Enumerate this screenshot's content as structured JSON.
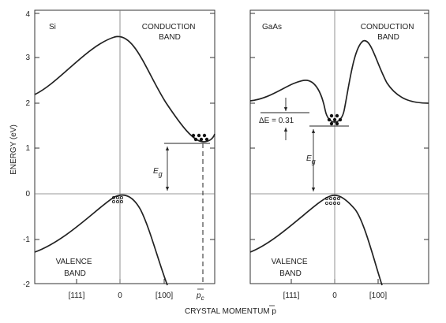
{
  "y_axis": {
    "label": "ENERGY (eV)",
    "ticks": [
      "4",
      "3",
      "2",
      "1",
      "0",
      "-1",
      "-2"
    ]
  },
  "x_axis": {
    "label": "CRYSTAL MOMENTUM p"
  },
  "panels": [
    {
      "material": "Si",
      "conduction_label": [
        "CONDUCTION",
        "BAND"
      ],
      "valence_label": [
        "VALENCE",
        "BAND"
      ],
      "x_ticks": [
        "[111]",
        "0",
        "[100]",
        "p"
      ],
      "x_tick_subscript": "c",
      "gap_symbol": "E",
      "gap_subscript": "g"
    },
    {
      "material": "GaAs",
      "conduction_label": [
        "CONDUCTION",
        "BAND"
      ],
      "valence_label": [
        "VALENCE",
        "BAND"
      ],
      "x_ticks": [
        "[111]",
        "0",
        "[100]"
      ],
      "delta_label": "ΔE = 0.31",
      "gap_symbol": "E",
      "gap_subscript": "g"
    }
  ]
}
